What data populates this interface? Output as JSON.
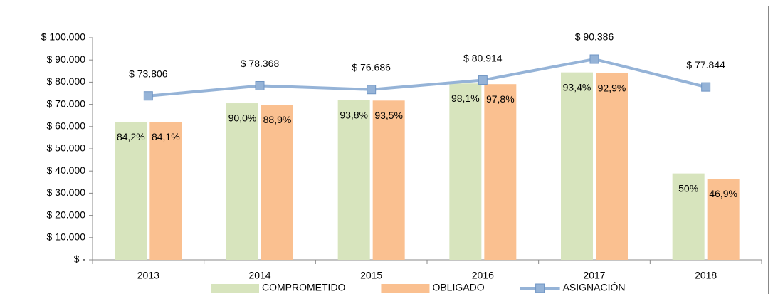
{
  "chart_data": {
    "type": "bar-line",
    "categories": [
      "2013",
      "2014",
      "2015",
      "2016",
      "2017",
      "2018"
    ],
    "series": [
      {
        "name": "COMPROMETIDO",
        "type": "bar",
        "color": "#d7e4bd",
        "values": [
          62100,
          70500,
          71900,
          79400,
          84400,
          38900
        ],
        "data_labels": [
          "84,2%",
          "90,0%",
          "93,8%",
          "98,1%",
          "93,4%",
          "50%"
        ]
      },
      {
        "name": "OBLIGADO",
        "type": "bar",
        "color": "#fac090",
        "values": [
          62100,
          69700,
          71700,
          79100,
          84000,
          36500
        ],
        "data_labels": [
          "84,1%",
          "88,9%",
          "93,5%",
          "97,8%",
          "92,9%",
          "46,9%"
        ]
      },
      {
        "name": "ASIGNACIÓN",
        "type": "line",
        "color": "#95b3d7",
        "values": [
          73806,
          78368,
          76686,
          80914,
          90386,
          77844
        ],
        "value_labels": [
          "$ 73.806",
          "$ 78.368",
          "$ 76.686",
          "$ 80.914",
          "$ 90.386",
          "$ 77.844"
        ]
      }
    ],
    "ylim": [
      0,
      100000
    ],
    "yticks": [
      {
        "value": 0,
        "label": "$ -"
      },
      {
        "value": 10000,
        "label": "$ 10.000"
      },
      {
        "value": 20000,
        "label": "$ 20.000"
      },
      {
        "value": 30000,
        "label": "$ 30.000"
      },
      {
        "value": 40000,
        "label": "$ 40.000"
      },
      {
        "value": 50000,
        "label": "$ 50.000"
      },
      {
        "value": 60000,
        "label": "$ 60.000"
      },
      {
        "value": 70000,
        "label": "$ 70.000"
      },
      {
        "value": 80000,
        "label": "$ 80.000"
      },
      {
        "value": 90000,
        "label": "$ 90.000"
      },
      {
        "value": 100000,
        "label": "$ 100.000"
      }
    ],
    "legend": "bottom"
  }
}
